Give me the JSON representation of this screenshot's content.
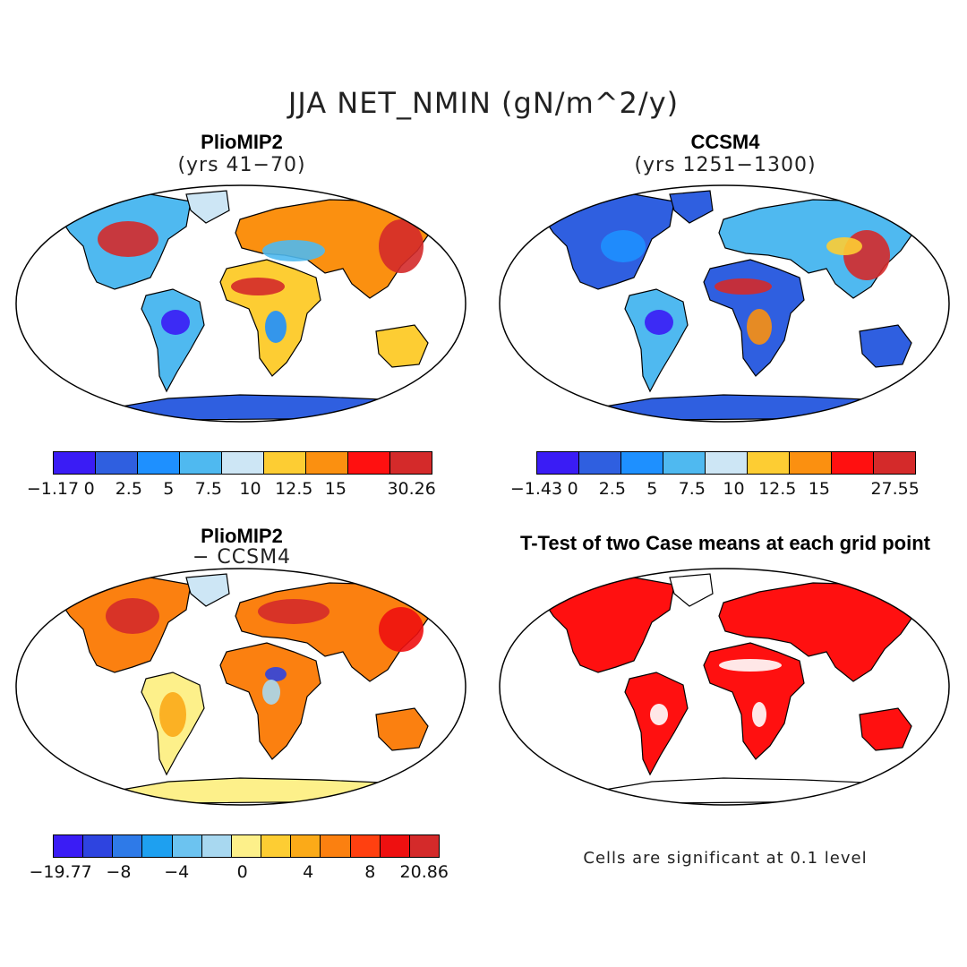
{
  "title": "JJA NET_NMIN (gN/m^2/y)",
  "panels": [
    {
      "title": "PlioMIP2",
      "subtitle": "(yrs 41−70)"
    },
    {
      "title": "CCSM4",
      "subtitle": "(yrs 1251−1300)"
    },
    {
      "title": "PlioMIP2",
      "subtitle": "− CCSM4"
    },
    {
      "title": "T-Test of two Case means at each grid point",
      "subtitle": ""
    }
  ],
  "colorbars": [
    {
      "colors": [
        "#3a1cf5",
        "#2f5fe0",
        "#1e90ff",
        "#4fb9f0",
        "#cde6f5",
        "#fdcd33",
        "#fb9010",
        "#ff1010",
        "#d42a2a"
      ],
      "labels": [
        "−1.17",
        "0",
        "2.5",
        "5",
        "7.5",
        "10",
        "12.5",
        "15",
        "30.26"
      ]
    },
    {
      "colors": [
        "#3a1cf5",
        "#2f5fe0",
        "#1e90ff",
        "#4fb9f0",
        "#cde6f5",
        "#fdcd33",
        "#fb9010",
        "#ff1010",
        "#d42a2a"
      ],
      "labels": [
        "−1.43",
        "0",
        "2.5",
        "5",
        "7.5",
        "10",
        "12.5",
        "15",
        "27.55"
      ]
    },
    {
      "colors": [
        "#3a1cf5",
        "#2e44e0",
        "#2e7ae8",
        "#1ea0f0",
        "#6cc3f0",
        "#a8d8f0",
        "#fdf08a",
        "#fdcd33",
        "#fbaa18",
        "#fb8010",
        "#ff4010",
        "#ee1010",
        "#d42a2a"
      ],
      "labels": [
        "−19.77",
        "−8",
        "−4",
        "0",
        "4",
        "8",
        "20.86"
      ]
    }
  ],
  "significance_note": "Cells are significant at 0.1 level"
}
